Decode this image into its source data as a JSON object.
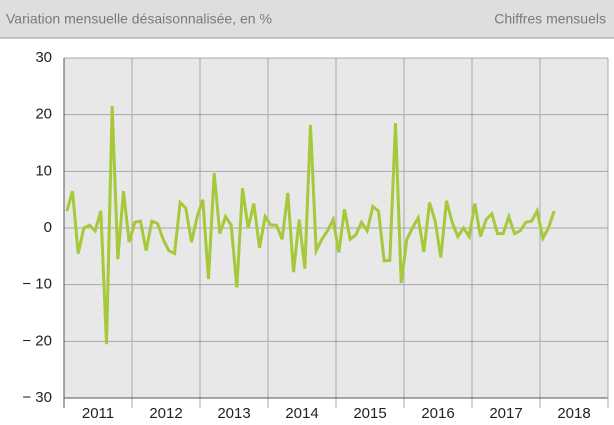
{
  "chart_data": {
    "type": "line",
    "title": "Variation mensuelle désaisonnalisée, en %",
    "subtitle": "Chiffres mensuels",
    "year_labels": [
      "2011",
      "2012",
      "2013",
      "2014",
      "2015",
      "2016",
      "2017",
      "2018"
    ],
    "series": [
      {
        "color": "#a5c93a",
        "values": [
          3,
          6.5,
          -4.5,
          0,
          0.5,
          -0.5,
          3,
          -20.5,
          21.5,
          -5.5,
          6.5,
          -2.5,
          1,
          1.2,
          -4,
          1.2,
          0.8,
          -2,
          -4,
          -4.5,
          4.5,
          3.5,
          -2.5,
          2,
          5,
          -9,
          9.7,
          -1,
          2,
          0.5,
          -10.5,
          7,
          0,
          4.3,
          -3.5,
          2,
          0.5,
          0.5,
          -2,
          6.2,
          -7.8,
          1.5,
          -7.2,
          18.2,
          -4,
          -2,
          -0.5,
          1.5,
          -4.3,
          3.3,
          -2,
          -1.2,
          1,
          -0.5,
          3.8,
          3,
          -5.8,
          -5.7,
          18.5,
          -9.7,
          -2,
          0,
          1.8,
          -4.2,
          4.5,
          1.2,
          -5.2,
          4.8,
          1,
          -1.5,
          0,
          -1.5,
          4.3,
          -1.5,
          1.5,
          2.5,
          -1,
          -1,
          2,
          -1,
          -0.5,
          1,
          1.2,
          3,
          -1.8,
          0,
          3
        ]
      }
    ],
    "ylim": [
      -30,
      30
    ],
    "yticks": [
      {
        "value": -30,
        "label": "− 30"
      },
      {
        "value": -20,
        "label": "− 20"
      },
      {
        "value": -10,
        "label": "− 10"
      },
      0,
      10,
      20,
      30
    ],
    "grid": true
  }
}
